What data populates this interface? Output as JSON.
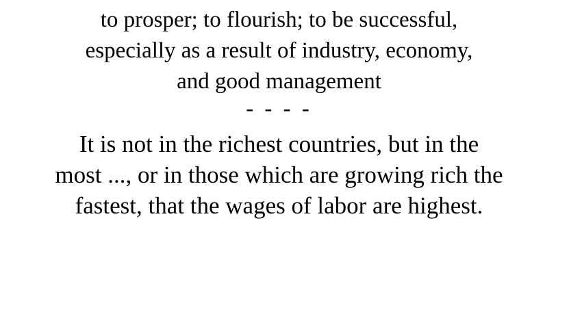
{
  "definition": {
    "lines": [
      "to prosper; to flourish; to be successful,",
      "especially as a result of industry, economy,",
      "and good management"
    ]
  },
  "separator": "- - - -",
  "example": {
    "lines": [
      "It is not in the richest countries, but in the",
      "most ..., or in those which are growing rich the",
      "fastest, that the wages of labor are highest."
    ]
  }
}
